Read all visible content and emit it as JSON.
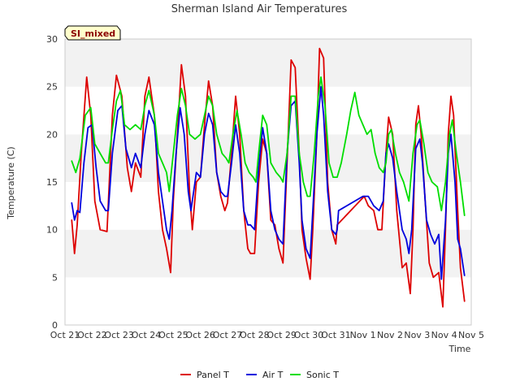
{
  "chart_data": {
    "type": "line",
    "title": "Sherman Island Air Temperatures",
    "xlabel": "Time",
    "ylabel": "Temperature (C)",
    "ylim": [
      0,
      30
    ],
    "yticks": [
      0,
      5,
      10,
      15,
      20,
      25,
      30
    ],
    "xlim": [
      "Oct 21",
      "Nov 5"
    ],
    "xticks": [
      "Oct 21",
      "Oct 22",
      "Oct 23",
      "Oct 24",
      "Oct 25",
      "Oct 26",
      "Oct 27",
      "Oct 28",
      "Oct 29",
      "Oct 30",
      "Oct 31",
      "Nov 1",
      "Nov 2",
      "Nov 3",
      "Nov 4",
      "Nov 5"
    ],
    "grid": "horizontal bands",
    "legend_position": "bottom-center",
    "badge": "SI_mixed",
    "colors": {
      "panel": "#dd0000",
      "air": "#0000dd",
      "sonic": "#00dd00",
      "band": "#f2f2f2",
      "badge_bg": "#ffffcc"
    },
    "series": [
      {
        "name": "Panel T",
        "color": "#dd0000",
        "points": [
          [
            0.25,
            11.0
          ],
          [
            0.35,
            7.5
          ],
          [
            0.45,
            10.5
          ],
          [
            0.6,
            18.0
          ],
          [
            0.8,
            26.0
          ],
          [
            0.95,
            22.0
          ],
          [
            1.1,
            13.0
          ],
          [
            1.3,
            10.0
          ],
          [
            1.55,
            9.8
          ],
          [
            1.75,
            22.0
          ],
          [
            1.9,
            26.2
          ],
          [
            2.1,
            24.0
          ],
          [
            2.3,
            16.5
          ],
          [
            2.45,
            14.0
          ],
          [
            2.6,
            17.0
          ],
          [
            2.8,
            15.5
          ],
          [
            2.95,
            24.0
          ],
          [
            3.1,
            26.0
          ],
          [
            3.3,
            22.0
          ],
          [
            3.45,
            14.0
          ],
          [
            3.6,
            10.0
          ],
          [
            3.75,
            8.0
          ],
          [
            3.9,
            5.5
          ],
          [
            4.0,
            13.0
          ],
          [
            4.15,
            20.0
          ],
          [
            4.3,
            27.3
          ],
          [
            4.45,
            24.0
          ],
          [
            4.6,
            14.0
          ],
          [
            4.7,
            10.0
          ],
          [
            4.85,
            15.0
          ],
          [
            5.0,
            15.5
          ],
          [
            5.15,
            21.0
          ],
          [
            5.3,
            25.6
          ],
          [
            5.45,
            23.0
          ],
          [
            5.6,
            16.0
          ],
          [
            5.75,
            13.5
          ],
          [
            5.9,
            12.0
          ],
          [
            6.0,
            12.8
          ],
          [
            6.15,
            18.0
          ],
          [
            6.3,
            24.0
          ],
          [
            6.45,
            20.0
          ],
          [
            6.6,
            12.0
          ],
          [
            6.75,
            8.0
          ],
          [
            6.85,
            7.5
          ],
          [
            7.0,
            7.5
          ],
          [
            7.15,
            15.0
          ],
          [
            7.3,
            19.5
          ],
          [
            7.45,
            18.0
          ],
          [
            7.6,
            11.0
          ],
          [
            7.75,
            10.5
          ],
          [
            7.9,
            8.0
          ],
          [
            8.05,
            6.5
          ],
          [
            8.2,
            17.0
          ],
          [
            8.35,
            27.8
          ],
          [
            8.5,
            27.0
          ],
          [
            8.65,
            18.0
          ],
          [
            8.75,
            10.0
          ],
          [
            8.9,
            7.0
          ],
          [
            9.05,
            4.8
          ],
          [
            9.15,
            10.0
          ],
          [
            9.3,
            20.0
          ],
          [
            9.4,
            29.0
          ],
          [
            9.55,
            28.0
          ],
          [
            9.7,
            15.0
          ],
          [
            9.85,
            10.0
          ],
          [
            10.0,
            8.5
          ],
          [
            10.05,
            10.5
          ],
          [
            11.05,
            13.5
          ],
          [
            11.2,
            12.5
          ],
          [
            11.4,
            12.0
          ],
          [
            11.55,
            10.0
          ],
          [
            11.7,
            10.0
          ],
          [
            11.85,
            18.0
          ],
          [
            11.95,
            21.8
          ],
          [
            12.1,
            20.0
          ],
          [
            12.25,
            12.0
          ],
          [
            12.45,
            6.0
          ],
          [
            12.6,
            6.5
          ],
          [
            12.75,
            3.3
          ],
          [
            12.85,
            10.0
          ],
          [
            12.95,
            21.0
          ],
          [
            13.05,
            23.0
          ],
          [
            13.15,
            20.0
          ],
          [
            13.3,
            13.0
          ],
          [
            13.45,
            6.5
          ],
          [
            13.6,
            5.0
          ],
          [
            13.8,
            5.5
          ],
          [
            13.95,
            1.9
          ],
          [
            14.05,
            10.0
          ],
          [
            14.15,
            20.0
          ],
          [
            14.25,
            24.0
          ],
          [
            14.35,
            22.0
          ],
          [
            14.5,
            12.0
          ],
          [
            14.6,
            6.0
          ],
          [
            14.75,
            2.5
          ]
        ]
      },
      {
        "name": "Air T",
        "color": "#0000dd",
        "points": [
          [
            0.25,
            12.8
          ],
          [
            0.35,
            11.0
          ],
          [
            0.45,
            12.0
          ],
          [
            0.55,
            11.8
          ],
          [
            0.7,
            17.0
          ],
          [
            0.85,
            20.7
          ],
          [
            1.0,
            21.0
          ],
          [
            1.15,
            16.5
          ],
          [
            1.3,
            13.0
          ],
          [
            1.5,
            12.0
          ],
          [
            1.6,
            12.0
          ],
          [
            1.75,
            18.0
          ],
          [
            1.95,
            22.5
          ],
          [
            2.1,
            23.0
          ],
          [
            2.25,
            18.5
          ],
          [
            2.45,
            16.5
          ],
          [
            2.6,
            18.0
          ],
          [
            2.8,
            16.5
          ],
          [
            2.95,
            20.0
          ],
          [
            3.1,
            22.5
          ],
          [
            3.3,
            21.0
          ],
          [
            3.45,
            16.0
          ],
          [
            3.6,
            13.0
          ],
          [
            3.75,
            10.0
          ],
          [
            3.85,
            9.0
          ],
          [
            3.95,
            12.0
          ],
          [
            4.1,
            18.0
          ],
          [
            4.25,
            22.8
          ],
          [
            4.4,
            20.0
          ],
          [
            4.55,
            14.0
          ],
          [
            4.65,
            12.0
          ],
          [
            4.85,
            16.0
          ],
          [
            5.0,
            15.5
          ],
          [
            5.15,
            20.0
          ],
          [
            5.3,
            22.2
          ],
          [
            5.45,
            21.0
          ],
          [
            5.6,
            16.0
          ],
          [
            5.75,
            14.0
          ],
          [
            5.9,
            13.5
          ],
          [
            6.0,
            13.5
          ],
          [
            6.15,
            17.0
          ],
          [
            6.3,
            21.0
          ],
          [
            6.45,
            18.0
          ],
          [
            6.6,
            12.0
          ],
          [
            6.75,
            10.5
          ],
          [
            6.85,
            10.5
          ],
          [
            7.0,
            10.0
          ],
          [
            7.15,
            16.5
          ],
          [
            7.3,
            20.7
          ],
          [
            7.45,
            18.0
          ],
          [
            7.6,
            12.0
          ],
          [
            7.75,
            10.0
          ],
          [
            7.9,
            9.0
          ],
          [
            8.05,
            8.5
          ],
          [
            8.2,
            18.0
          ],
          [
            8.35,
            23.0
          ],
          [
            8.5,
            23.5
          ],
          [
            8.65,
            17.0
          ],
          [
            8.75,
            11.0
          ],
          [
            8.9,
            8.0
          ],
          [
            9.05,
            7.0
          ],
          [
            9.15,
            12.0
          ],
          [
            9.3,
            20.0
          ],
          [
            9.45,
            25.0
          ],
          [
            9.55,
            22.0
          ],
          [
            9.7,
            14.0
          ],
          [
            9.85,
            10.0
          ],
          [
            10.0,
            9.5
          ],
          [
            10.05,
            10.0
          ],
          [
            10.1,
            12.0
          ],
          [
            11.0,
            13.5
          ],
          [
            11.2,
            13.5
          ],
          [
            11.4,
            12.5
          ],
          [
            11.6,
            12.0
          ],
          [
            11.75,
            13.0
          ],
          [
            11.85,
            18.0
          ],
          [
            11.95,
            19.0
          ],
          [
            12.1,
            17.5
          ],
          [
            12.25,
            14.0
          ],
          [
            12.45,
            10.0
          ],
          [
            12.6,
            9.0
          ],
          [
            12.7,
            7.5
          ],
          [
            12.8,
            10.0
          ],
          [
            12.95,
            18.5
          ],
          [
            13.1,
            19.5
          ],
          [
            13.2,
            17.0
          ],
          [
            13.35,
            11.0
          ],
          [
            13.5,
            9.5
          ],
          [
            13.65,
            8.5
          ],
          [
            13.8,
            9.5
          ],
          [
            13.9,
            4.8
          ],
          [
            14.05,
            11.0
          ],
          [
            14.15,
            18.0
          ],
          [
            14.25,
            20.0
          ],
          [
            14.4,
            15.0
          ],
          [
            14.5,
            9.0
          ],
          [
            14.6,
            8.0
          ],
          [
            14.75,
            5.2
          ]
        ]
      },
      {
        "name": "Sonic T",
        "color": "#00dd00",
        "points": [
          [
            0.25,
            17.2
          ],
          [
            0.4,
            16.0
          ],
          [
            0.55,
            17.5
          ],
          [
            0.75,
            22.0
          ],
          [
            0.95,
            22.8
          ],
          [
            1.1,
            19.0
          ],
          [
            1.3,
            18.0
          ],
          [
            1.5,
            17.0
          ],
          [
            1.6,
            17.0
          ],
          [
            1.75,
            20.5
          ],
          [
            1.9,
            23.5
          ],
          [
            2.05,
            24.6
          ],
          [
            2.2,
            21.0
          ],
          [
            2.4,
            20.5
          ],
          [
            2.6,
            21.0
          ],
          [
            2.8,
            20.5
          ],
          [
            2.95,
            23.0
          ],
          [
            3.1,
            24.6
          ],
          [
            3.3,
            22.0
          ],
          [
            3.45,
            18.0
          ],
          [
            3.6,
            17.0
          ],
          [
            3.75,
            16.0
          ],
          [
            3.85,
            14.0
          ],
          [
            4.0,
            18.0
          ],
          [
            4.15,
            22.0
          ],
          [
            4.3,
            24.8
          ],
          [
            4.45,
            23.0
          ],
          [
            4.6,
            20.0
          ],
          [
            4.8,
            19.5
          ],
          [
            5.0,
            20.0
          ],
          [
            5.15,
            22.0
          ],
          [
            5.3,
            24.0
          ],
          [
            5.45,
            23.0
          ],
          [
            5.6,
            20.0
          ],
          [
            5.8,
            18.0
          ],
          [
            5.95,
            17.5
          ],
          [
            6.05,
            17.0
          ],
          [
            6.2,
            20.0
          ],
          [
            6.35,
            22.5
          ],
          [
            6.5,
            20.0
          ],
          [
            6.65,
            17.0
          ],
          [
            6.8,
            16.0
          ],
          [
            6.95,
            15.5
          ],
          [
            7.05,
            15.0
          ],
          [
            7.15,
            18.0
          ],
          [
            7.3,
            22.0
          ],
          [
            7.45,
            21.0
          ],
          [
            7.6,
            17.0
          ],
          [
            7.8,
            16.0
          ],
          [
            7.95,
            15.5
          ],
          [
            8.05,
            15.0
          ],
          [
            8.2,
            18.0
          ],
          [
            8.35,
            24.0
          ],
          [
            8.5,
            24.0
          ],
          [
            8.65,
            18.0
          ],
          [
            8.8,
            15.0
          ],
          [
            8.95,
            13.5
          ],
          [
            9.05,
            13.5
          ],
          [
            9.2,
            18.0
          ],
          [
            9.35,
            24.0
          ],
          [
            9.45,
            26.0
          ],
          [
            9.6,
            23.0
          ],
          [
            9.75,
            17.0
          ],
          [
            9.9,
            15.5
          ],
          [
            10.05,
            15.5
          ],
          [
            10.2,
            17.0
          ],
          [
            10.4,
            20.0
          ],
          [
            10.55,
            22.5
          ],
          [
            10.7,
            24.4
          ],
          [
            10.85,
            22.0
          ],
          [
            11.0,
            21.0
          ],
          [
            11.15,
            20.0
          ],
          [
            11.3,
            20.5
          ],
          [
            11.45,
            18.0
          ],
          [
            11.6,
            16.5
          ],
          [
            11.75,
            16.0
          ],
          [
            11.85,
            17.0
          ],
          [
            11.95,
            20.0
          ],
          [
            12.05,
            20.5
          ],
          [
            12.2,
            18.0
          ],
          [
            12.35,
            16.0
          ],
          [
            12.5,
            15.0
          ],
          [
            12.7,
            13.0
          ],
          [
            12.85,
            18.0
          ],
          [
            13.0,
            21.0
          ],
          [
            13.1,
            21.5
          ],
          [
            13.25,
            19.0
          ],
          [
            13.4,
            16.0
          ],
          [
            13.55,
            15.0
          ],
          [
            13.75,
            14.5
          ],
          [
            13.9,
            12.0
          ],
          [
            14.05,
            15.0
          ],
          [
            14.2,
            20.0
          ],
          [
            14.3,
            21.5
          ],
          [
            14.45,
            18.0
          ],
          [
            14.6,
            15.0
          ],
          [
            14.75,
            11.5
          ]
        ]
      }
    ]
  }
}
